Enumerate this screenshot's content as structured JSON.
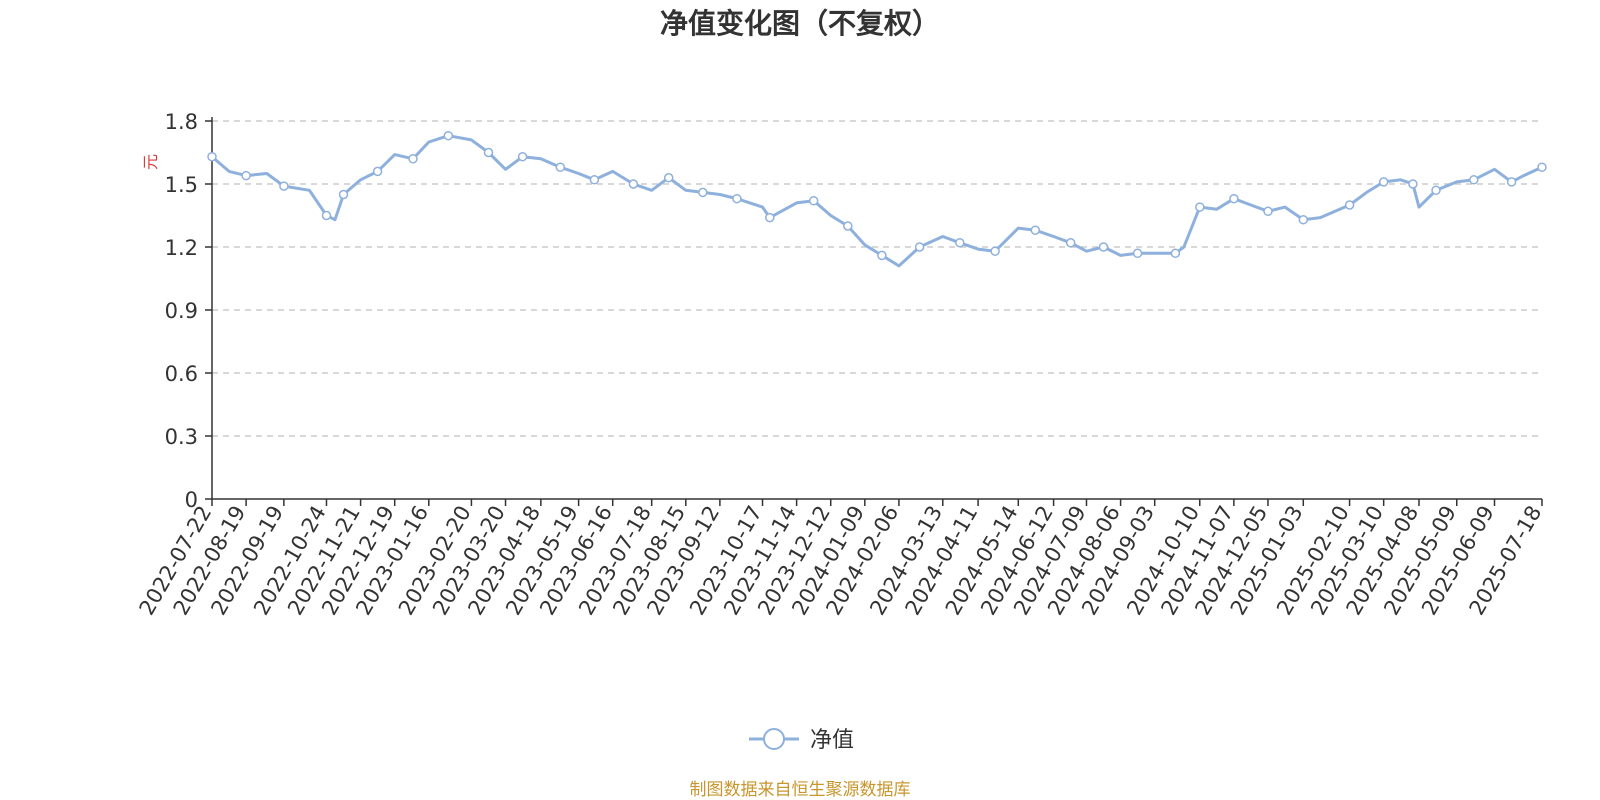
{
  "chart_data": {
    "type": "line",
    "title": "净值变化图（不复权）",
    "ylabel": "元",
    "ylim": [
      0,
      1.8
    ],
    "yticks": [
      "0",
      "0.3",
      "0.6",
      "0.9",
      "1.2",
      "1.5",
      "1.8"
    ],
    "ytick_values": [
      0,
      0.3,
      0.6,
      0.9,
      1.2,
      1.5,
      1.8
    ],
    "grid": true,
    "legend_position": "bottom-center",
    "xticks": [
      "2022-07-22",
      "2022-08-19",
      "2022-09-19",
      "2022-10-24",
      "2022-11-21",
      "2022-12-19",
      "2023-01-16",
      "2023-02-20",
      "2023-03-20",
      "2023-04-18",
      "2023-05-19",
      "2023-06-16",
      "2023-07-18",
      "2023-08-15",
      "2023-09-12",
      "2023-10-17",
      "2023-11-14",
      "2023-12-12",
      "2024-01-09",
      "2024-02-06",
      "2024-03-13",
      "2024-04-11",
      "2024-05-14",
      "2024-06-12",
      "2024-07-09",
      "2024-08-06",
      "2024-09-03",
      "2024-10-10",
      "2024-11-07",
      "2024-12-05",
      "2025-01-03",
      "2025-02-10",
      "2025-03-10",
      "2025-04-08",
      "2025-05-09",
      "2025-06-09",
      "2025-07-18"
    ],
    "series": [
      {
        "name": "净值",
        "color": "#8eb0dc",
        "x": [
          "2022-07-22",
          "2022-08-05",
          "2022-08-19",
          "2022-09-05",
          "2022-09-19",
          "2022-10-10",
          "2022-10-24",
          "2022-10-31",
          "2022-11-07",
          "2022-11-21",
          "2022-12-05",
          "2022-12-19",
          "2023-01-03",
          "2023-01-16",
          "2023-02-01",
          "2023-02-20",
          "2023-03-06",
          "2023-03-20",
          "2023-04-03",
          "2023-04-18",
          "2023-05-04",
          "2023-05-19",
          "2023-06-01",
          "2023-06-16",
          "2023-07-03",
          "2023-07-18",
          "2023-08-01",
          "2023-08-15",
          "2023-08-29",
          "2023-09-12",
          "2023-09-26",
          "2023-10-17",
          "2023-10-23",
          "2023-11-14",
          "2023-11-28",
          "2023-12-12",
          "2023-12-26",
          "2024-01-09",
          "2024-01-23",
          "2024-02-06",
          "2024-02-23",
          "2024-03-13",
          "2024-03-27",
          "2024-04-11",
          "2024-04-25",
          "2024-05-14",
          "2024-05-28",
          "2024-06-12",
          "2024-06-26",
          "2024-07-09",
          "2024-07-23",
          "2024-08-06",
          "2024-08-20",
          "2024-09-03",
          "2024-09-20",
          "2024-09-27",
          "2024-10-10",
          "2024-10-24",
          "2024-11-07",
          "2024-11-21",
          "2024-12-05",
          "2024-12-19",
          "2025-01-03",
          "2025-01-17",
          "2025-02-10",
          "2025-02-24",
          "2025-03-10",
          "2025-03-24",
          "2025-04-03",
          "2025-04-08",
          "2025-04-22",
          "2025-05-09",
          "2025-05-23",
          "2025-06-09",
          "2025-06-23",
          "2025-07-03",
          "2025-07-18"
        ],
        "values": [
          1.63,
          1.56,
          1.54,
          1.55,
          1.49,
          1.47,
          1.35,
          1.33,
          1.45,
          1.52,
          1.56,
          1.64,
          1.62,
          1.7,
          1.73,
          1.71,
          1.65,
          1.57,
          1.63,
          1.62,
          1.58,
          1.55,
          1.52,
          1.56,
          1.5,
          1.47,
          1.53,
          1.47,
          1.46,
          1.45,
          1.43,
          1.39,
          1.34,
          1.41,
          1.42,
          1.35,
          1.3,
          1.21,
          1.16,
          1.11,
          1.2,
          1.25,
          1.22,
          1.19,
          1.18,
          1.29,
          1.28,
          1.25,
          1.22,
          1.18,
          1.2,
          1.16,
          1.17,
          1.17,
          1.17,
          1.2,
          1.39,
          1.38,
          1.43,
          1.4,
          1.37,
          1.39,
          1.33,
          1.34,
          1.4,
          1.46,
          1.51,
          1.52,
          1.5,
          1.39,
          1.47,
          1.51,
          1.52,
          1.57,
          1.51,
          1.54,
          1.58
        ]
      }
    ]
  },
  "source_note": "制图数据来自恒生聚源数据库"
}
